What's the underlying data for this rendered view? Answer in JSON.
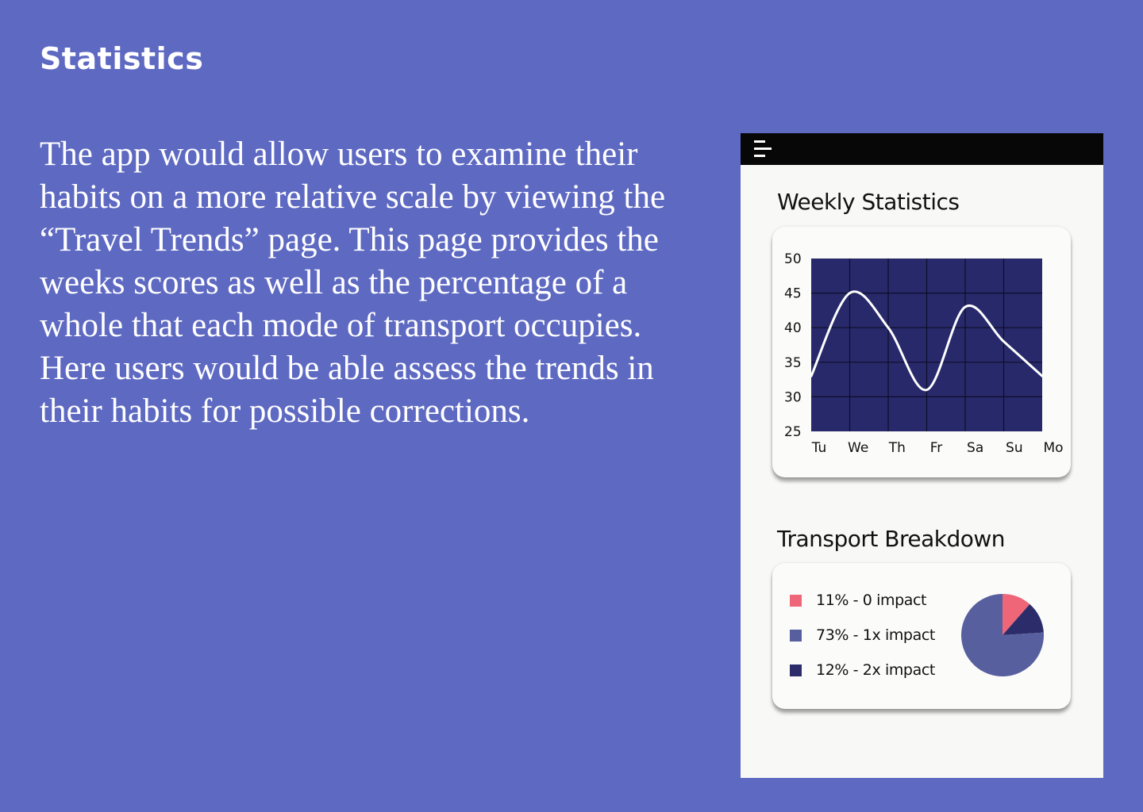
{
  "slide": {
    "title": "Statistics",
    "body": "The app would allow users to examine their habits on a more relative scale by viewing the “Travel Trends” page. This page provides the weeks scores as well as the percentage of a whole that each mode of transport occupies. Here users would be able assess the trends in their habits for possible corrections."
  },
  "phone": {
    "menu_icon": "hamburger-menu-icon",
    "weekly_title": "Weekly Statistics",
    "breakdown_title": "Transport Breakdown"
  },
  "colors": {
    "background": "#5e69c2",
    "chart_bg": "#28296a",
    "line": "#ffffff",
    "zero_impact": "#ee6677",
    "one_x_impact": "#575f9e",
    "two_x_impact": "#2b2c69"
  },
  "chart_data": [
    {
      "type": "line",
      "title": "Weekly Statistics",
      "categories": [
        "Tu",
        "We",
        "Th",
        "Fr",
        "Sa",
        "Su",
        "Mo"
      ],
      "series": [
        {
          "values": [
            33,
            45,
            40,
            31,
            43,
            38,
            33
          ]
        }
      ],
      "ylim": [
        25,
        50
      ],
      "yticks": [
        50,
        45,
        40,
        35,
        30,
        25
      ],
      "grid": true
    },
    {
      "type": "pie",
      "title": "Transport Breakdown",
      "slices": [
        {
          "label": "11% - 0 impact",
          "value": 11,
          "color": "#ee6677"
        },
        {
          "label": "73% - 1x impact",
          "value": 73,
          "color": "#575f9e"
        },
        {
          "label": "12% - 2x impact",
          "value": 12,
          "color": "#2b2c69"
        }
      ]
    }
  ]
}
